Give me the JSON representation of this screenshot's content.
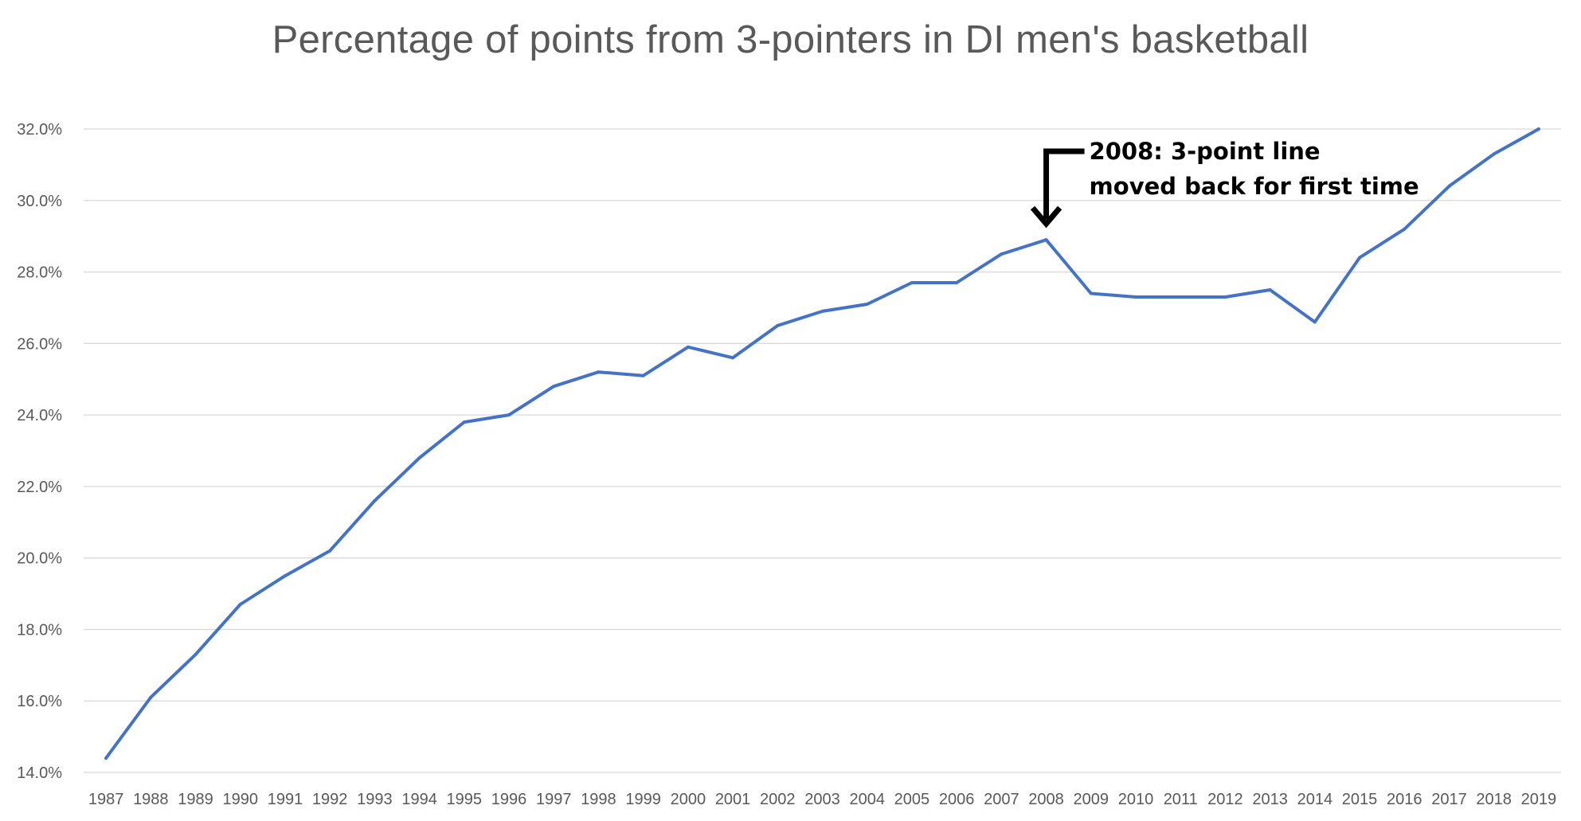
{
  "chart_data": {
    "type": "line",
    "title": "Percentage of points from 3-pointers in DI men's basketball",
    "xlabel": "",
    "ylabel": "",
    "ylim": [
      14.0,
      32.0
    ],
    "y_ticks": [
      "14.0%",
      "16.0%",
      "18.0%",
      "20.0%",
      "22.0%",
      "24.0%",
      "26.0%",
      "28.0%",
      "30.0%",
      "32.0%"
    ],
    "grid": true,
    "legend": "none",
    "categories": [
      "1987",
      "1988",
      "1989",
      "1990",
      "1991",
      "1992",
      "1993",
      "1994",
      "1995",
      "1996",
      "1997",
      "1998",
      "1999",
      "2000",
      "2001",
      "2002",
      "2003",
      "2004",
      "2005",
      "2006",
      "2007",
      "2008",
      "2009",
      "2010",
      "2011",
      "2012",
      "2013",
      "2014",
      "2015",
      "2016",
      "2017",
      "2018",
      "2019"
    ],
    "series": [
      {
        "color": "#4472C4",
        "values": [
          14.4,
          16.1,
          17.3,
          18.7,
          19.5,
          20.2,
          21.6,
          22.8,
          23.8,
          24.0,
          24.8,
          25.2,
          25.1,
          25.9,
          25.6,
          26.5,
          26.9,
          27.1,
          27.7,
          27.7,
          28.5,
          28.9,
          27.4,
          27.3,
          27.3,
          27.3,
          27.5,
          26.6,
          28.4,
          29.2,
          30.4,
          31.3,
          32.0
        ]
      }
    ],
    "annotations": [
      {
        "x": "2008",
        "line1": "2008: 3-point line",
        "line2": "moved back for first time"
      }
    ]
  }
}
